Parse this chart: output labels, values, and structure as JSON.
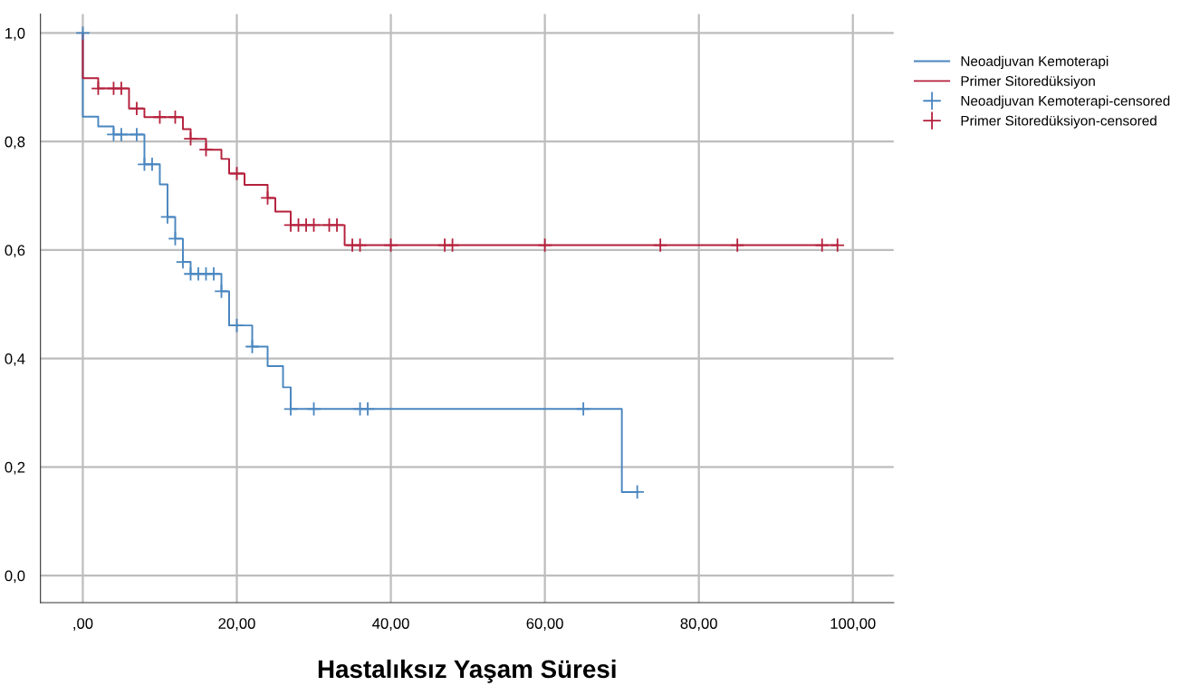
{
  "chart_data": {
    "type": "step",
    "xlabel": "Hastalıksız Yaşam Süresi",
    "xlim": [
      -5.5,
      105.3
    ],
    "ylim": [
      -0.05,
      1.035
    ],
    "xticks": [
      {
        "value": 0,
        "label": ",00"
      },
      {
        "value": 20,
        "label": "20,00"
      },
      {
        "value": 40,
        "label": "40,00"
      },
      {
        "value": 60,
        "label": "60,00"
      },
      {
        "value": 80,
        "label": "80,00"
      },
      {
        "value": 100,
        "label": "100,00"
      }
    ],
    "yticks": [
      {
        "value": 0,
        "label": "0,0"
      },
      {
        "value": 0.2,
        "label": "0,2"
      },
      {
        "value": 0.4,
        "label": "0,4"
      },
      {
        "value": 0.6,
        "label": "0,6"
      },
      {
        "value": 0.8,
        "label": "0,8"
      },
      {
        "value": 1.0,
        "label": "1,0"
      }
    ],
    "grid": true,
    "legend": "top right",
    "series": [
      {
        "name": "Neoadjuvan Kemoterapi",
        "color": "#4a86c0",
        "x": [
          0,
          0,
          2,
          4,
          8,
          10,
          11,
          12,
          13,
          14,
          18,
          19,
          22,
          24,
          26,
          27,
          70,
          72
        ],
        "values": [
          1.0,
          0.846,
          0.828,
          0.813,
          0.758,
          0.721,
          0.661,
          0.621,
          0.578,
          0.556,
          0.524,
          0.461,
          0.422,
          0.386,
          0.347,
          0.307,
          0.154,
          0.154
        ]
      },
      {
        "name": "Primer Sitoredüksiyon",
        "color": "#b5203c",
        "x": [
          0,
          0,
          2,
          6,
          8,
          13,
          14,
          16,
          18,
          19,
          21,
          24,
          25,
          27,
          34,
          98
        ],
        "values": [
          1.0,
          0.917,
          0.898,
          0.861,
          0.845,
          0.823,
          0.805,
          0.785,
          0.768,
          0.741,
          0.72,
          0.696,
          0.671,
          0.646,
          0.609,
          0.609
        ]
      },
      {
        "name": "Neoadjuvan Kemoterapi-censored",
        "type": "scatter",
        "marker": "cross",
        "color": "#4a86c0",
        "x": [
          0,
          4,
          5,
          7,
          8,
          9,
          11,
          12,
          13,
          14,
          15,
          16,
          17,
          18,
          20,
          22,
          27,
          30,
          36,
          37,
          65,
          72
        ],
        "values": [
          1.0,
          0.813,
          0.813,
          0.813,
          0.758,
          0.758,
          0.661,
          0.621,
          0.578,
          0.556,
          0.556,
          0.556,
          0.556,
          0.524,
          0.461,
          0.422,
          0.307,
          0.307,
          0.307,
          0.307,
          0.307,
          0.154
        ]
      },
      {
        "name": "Primer Sitoredüksiyon-censored",
        "type": "scatter",
        "marker": "cross",
        "color": "#b5203c",
        "x": [
          2,
          4,
          5,
          7,
          10,
          12,
          14,
          16,
          20,
          24,
          27,
          28,
          29,
          30,
          32,
          33,
          35,
          36,
          40,
          47,
          48,
          60,
          75,
          85,
          96,
          98
        ],
        "values": [
          0.898,
          0.898,
          0.898,
          0.861,
          0.845,
          0.845,
          0.805,
          0.785,
          0.741,
          0.696,
          0.646,
          0.646,
          0.646,
          0.646,
          0.646,
          0.646,
          0.609,
          0.609,
          0.609,
          0.609,
          0.609,
          0.609,
          0.609,
          0.609,
          0.609,
          0.609
        ]
      }
    ]
  }
}
